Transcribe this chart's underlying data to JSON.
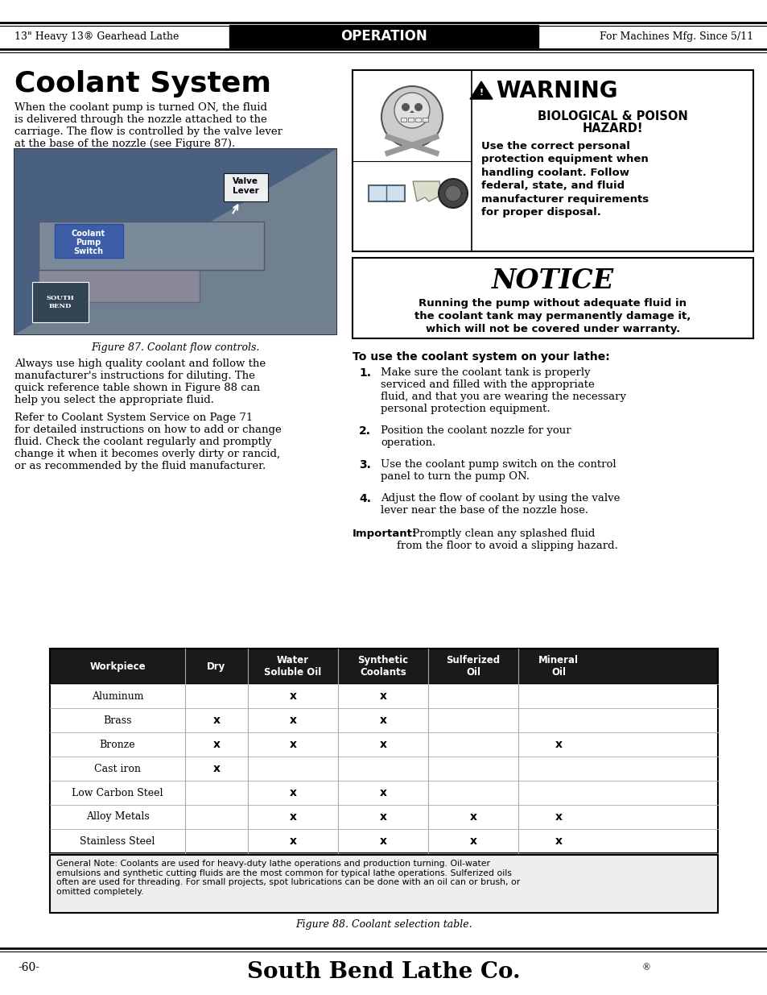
{
  "page_title": "Coolant System",
  "header_left": "13\" Heavy 13® Gearhead Lathe",
  "header_center": "OPERATION",
  "header_right": "For Machines Mfg. Since 5/11",
  "footer_page": "-60-",
  "footer_brand": "South Bend Lathe Co.",
  "fig87_caption": "Figure 87. Coolant flow controls.",
  "warning_title": "⚠WARNING",
  "warning_sub1": "BIOLOGICAL & POISON",
  "warning_sub2": "HAZARD!",
  "warning_body": [
    "Use the correct personal",
    "protection equipment when",
    "handling coolant. Follow",
    "federal, state, and fluid",
    "manufacturer requirements",
    "for proper disposal."
  ],
  "notice_title": "NOTICE",
  "notice_body": [
    "Running the pump without adequate fluid in",
    "the coolant tank may permanently damage it,",
    "which will not be covered under warranty."
  ],
  "steps_title": "To use the coolant system on your lathe:",
  "steps": [
    [
      "Make sure the coolant tank is properly",
      "serviced and filled with the appropriate",
      "fluid, and that you are wearing the necessary",
      "personal protection equipment."
    ],
    [
      "Position the coolant nozzle for your",
      "operation."
    ],
    [
      "Use the coolant pump switch on the control",
      "panel to turn the pump ON."
    ],
    [
      "Adjust the flow of coolant by using the valve",
      "lever near the base of the nozzle hose."
    ]
  ],
  "table_headers": [
    "Workpiece",
    "Dry",
    "Water\nSoluble Oil",
    "Synthetic\nCoolants",
    "Sulferized\nOil",
    "Mineral\nOil"
  ],
  "table_rows": [
    [
      "Aluminum",
      "",
      "x",
      "x",
      "",
      ""
    ],
    [
      "Brass",
      "x",
      "x",
      "x",
      "",
      ""
    ],
    [
      "Bronze",
      "x",
      "x",
      "x",
      "",
      "x"
    ],
    [
      "Cast iron",
      "x",
      "",
      "",
      "",
      ""
    ],
    [
      "Low Carbon Steel",
      "",
      "x",
      "x",
      "",
      ""
    ],
    [
      "Alloy Metals",
      "",
      "x",
      "x",
      "x",
      "x"
    ],
    [
      "Stainless Steel",
      "",
      "x",
      "x",
      "x",
      "x"
    ]
  ],
  "table_note": "General Note: Coolants are used for heavy-duty lathe operations and production turning. Oil-water\nemulsions and synthetic cutting fluids are the most common for typical lathe operations. Sulferized oils\noften are used for threading. For small projects, spot lubrications can be done with an oil can or brush, or\nomitted completely.",
  "fig88_caption": "Figure 88. Coolant selection table.",
  "bg_color": "#ffffff",
  "header_bg": "#1a1a1a",
  "table_header_bg": "#1a1a1a"
}
